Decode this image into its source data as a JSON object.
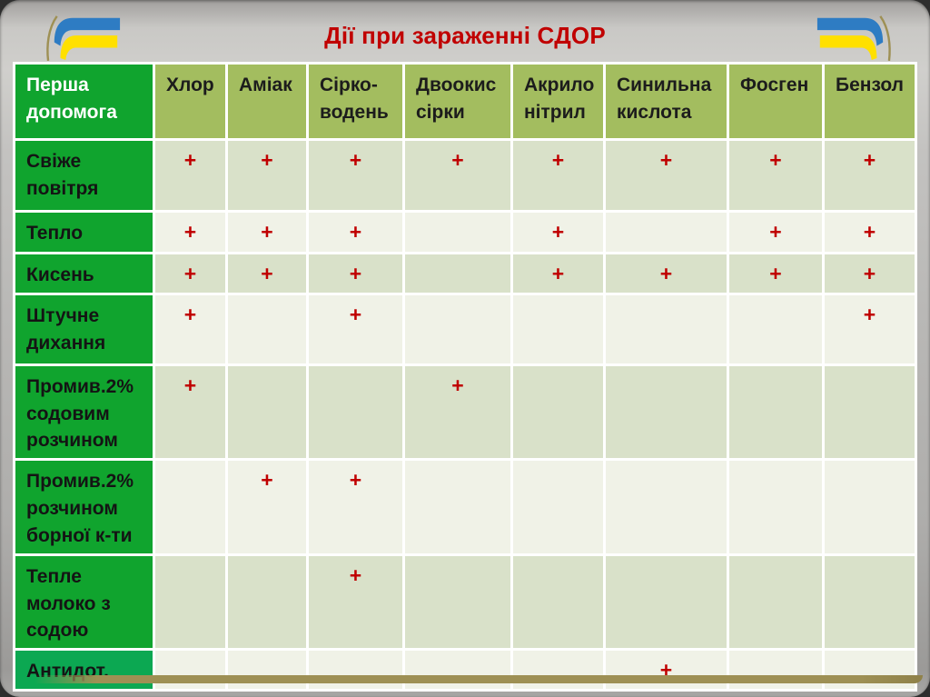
{
  "title": "Дії при зараженні СДОР",
  "decorations": {
    "flag_left": "ukraine-flag",
    "flag_right": "ukraine-flag",
    "bottom_bar": "gold-frame-bar"
  },
  "colors": {
    "title-red": "#C00000",
    "mark-red": "#C00000",
    "header-olive": "#A3BD5F",
    "label-green": "#10A42E",
    "row-dark": "#D9E1C9",
    "row-light": "#F0F2E7",
    "flag-blue": "#2E7CC3",
    "flag-yellow": "#FFE000",
    "gold": "#9E9054"
  },
  "table": {
    "corner_header": "Перша допомога",
    "columns": [
      "Хлор",
      "Аміак",
      "Сірко-водень",
      "Двоокис сірки",
      "Акрило нітрил",
      "Синильна кислота",
      "Фосген",
      "Бензол"
    ],
    "mark_symbol": "+",
    "rows": [
      {
        "label": "Свіже повітря",
        "marks": [
          1,
          1,
          1,
          1,
          1,
          1,
          1,
          1
        ]
      },
      {
        "label": "Тепло",
        "marks": [
          1,
          1,
          1,
          0,
          1,
          0,
          1,
          1
        ]
      },
      {
        "label": "Кисень",
        "marks": [
          1,
          1,
          1,
          0,
          1,
          1,
          1,
          1
        ]
      },
      {
        "label": "Штучне дихання",
        "marks": [
          1,
          0,
          1,
          0,
          0,
          0,
          0,
          1
        ]
      },
      {
        "label": "Промив.2% содовим розчином",
        "marks": [
          1,
          0,
          0,
          1,
          0,
          0,
          0,
          0
        ]
      },
      {
        "label": "Промив.2% розчином борної к-ти",
        "marks": [
          0,
          1,
          1,
          0,
          0,
          0,
          0,
          0
        ]
      },
      {
        "label": "Тепле молоко з содою",
        "marks": [
          0,
          0,
          1,
          0,
          0,
          0,
          0,
          0
        ]
      },
      {
        "label": "Антидот.",
        "marks": [
          0,
          0,
          0,
          0,
          0,
          1,
          0,
          0
        ],
        "label_color": "#0CA852"
      }
    ]
  }
}
